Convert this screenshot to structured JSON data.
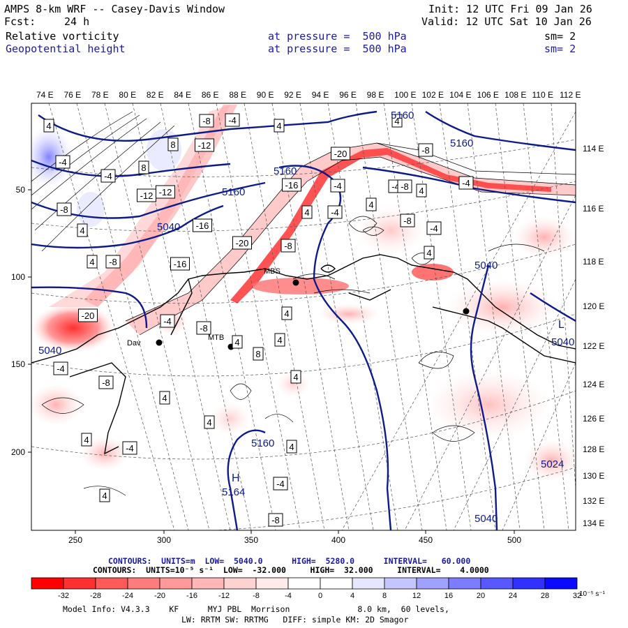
{
  "header": {
    "title": "AMPS 8-km WRF -- Casey-Davis Window",
    "fcst_label": "Fcst:",
    "fcst_value": "24 h",
    "init": "Init: 12 UTC Fri 09 Jan 26",
    "valid": "Valid: 12 UTC Sat 10 Jan 26",
    "field1_name": "Relative vorticity",
    "field1_level": "at pressure =  500 hPa",
    "field1_sm": "sm= 2",
    "field2_name": "Geopotential height",
    "field2_level": "at pressure =  500 hPa",
    "field2_sm": "sm= 2"
  },
  "top_lon_labels": [
    "74 E",
    "76 E",
    "78 E",
    "80 E",
    "82 E",
    "84 E",
    "86 E",
    "88 E",
    "90 E",
    "92 E",
    "94 E",
    "96 E",
    "98 E",
    "100 E",
    "102 E",
    "104 E",
    "106 E",
    "108 E",
    "110 E",
    "112 E"
  ],
  "right_lon_labels": [
    "114 E",
    "116 E",
    "118 E",
    "120 E",
    "122 E",
    "124 E",
    "126 E",
    "128 E",
    "130 E",
    "132 E",
    "134 E"
  ],
  "x_ticks": [
    "250",
    "300",
    "350",
    "400",
    "450",
    "500"
  ],
  "y_ticks": [
    "50",
    "100",
    "150",
    "200"
  ],
  "height_labels": [
    "5160",
    "5160",
    "5160",
    "5160",
    "5040",
    "5040",
    "5040",
    "5160",
    "5164",
    "5024",
    "5040",
    "5040"
  ],
  "pressure_centers": [
    "H",
    "L"
  ],
  "vort_labels": [
    "4",
    "-4",
    "-8",
    "-12",
    "-16",
    "-20",
    "4",
    "8",
    "-4",
    "-8",
    "-12",
    "-16",
    "-20",
    "4",
    "-4",
    "-8",
    "4",
    "8",
    "-4",
    "-8",
    "-12",
    "-16",
    "-20",
    "-4",
    "4",
    "-4",
    "-8",
    "4",
    "-8",
    "4",
    "-4",
    "4",
    "-8",
    "-4",
    "4",
    "8",
    "4",
    "4",
    "4",
    "4",
    "-8",
    "4",
    "4",
    "-4",
    "-8",
    "4",
    "-4",
    "4",
    "-4",
    "-8",
    "4",
    "-4"
  ],
  "stations": [
    "MBS",
    "Dav",
    "MTB"
  ],
  "contours_height": {
    "label": "CONTOURS:  UNITS=m  LOW=  5040.0      HIGH=  5280.0      INTERVAL=   60.000"
  },
  "contours_vort": {
    "label": "CONTOURS:  UNITS=10⁻⁵ s⁻¹  LOW=  -32.000     HIGH=  32.000     INTERVAL=    4.0000"
  },
  "colorbar": {
    "ticks": [
      "-32",
      "-28",
      "-24",
      "-20",
      "-16",
      "-12",
      "-8",
      "-4",
      "0",
      "4",
      "8",
      "12",
      "16",
      "20",
      "24",
      "28",
      "32"
    ],
    "unit": "10⁻⁵ s⁻¹",
    "colors": [
      "#ff0000",
      "#ff3030",
      "#ff5a5a",
      "#ff7c7c",
      "#ff9a9a",
      "#ffb6b6",
      "#ffd2d2",
      "#ffeaea",
      "#ffffff",
      "#ffffff",
      "#e6e6ff",
      "#c4c4ff",
      "#a0a0ff",
      "#7c7cff",
      "#5858ff",
      "#3030ff",
      "#0a0aff"
    ]
  },
  "model_info": {
    "line1": "Model Info: V4.3.3    KF      MYJ PBL  Morrison              8.0 km,  60 levels,",
    "line2": "LW: RRTM SW: RRTMG   DIFF: simple KM: 2D Smagor"
  },
  "colors": {
    "height_contour": "#0d1a8a",
    "vort_neg": "#ff2020",
    "vort_pos": "#4040ff",
    "coast": "#000000"
  }
}
